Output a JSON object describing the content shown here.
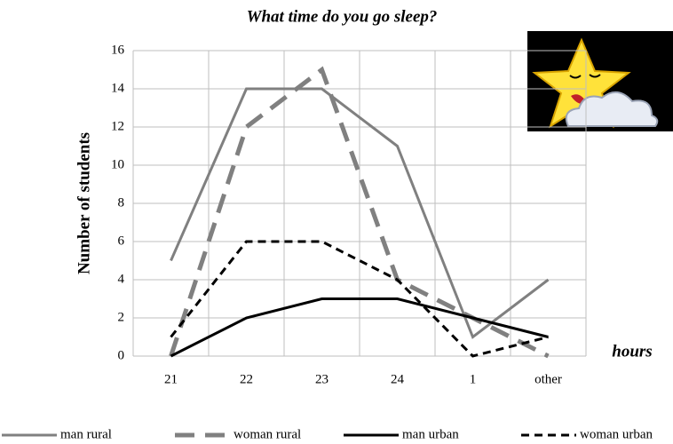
{
  "chart_data": {
    "type": "line",
    "title": "What time do you go sleep?",
    "y_label": "Number of students",
    "x_label": "hours",
    "categories": [
      "21",
      "22",
      "23",
      "24",
      "1",
      "other"
    ],
    "series": [
      {
        "name": "man rural",
        "color": "#808080",
        "dashed": false,
        "values": [
          5,
          14,
          14,
          11,
          1,
          4
        ]
      },
      {
        "name": "woman rural",
        "color": "#808080",
        "dashed": true,
        "values": [
          0,
          12,
          15,
          4,
          2,
          0
        ]
      },
      {
        "name": "man urban",
        "color": "#000000",
        "dashed": false,
        "values": [
          0,
          2,
          3,
          3,
          2,
          1
        ]
      },
      {
        "name": "woman urban",
        "color": "#000000",
        "dashed": true,
        "values": [
          1,
          6,
          6,
          4,
          0,
          1
        ]
      }
    ],
    "ylim": [
      0,
      16
    ],
    "yticks": [
      0,
      2,
      4,
      6,
      8,
      10,
      12,
      14,
      16
    ],
    "grid": true,
    "legend": "bottom"
  }
}
